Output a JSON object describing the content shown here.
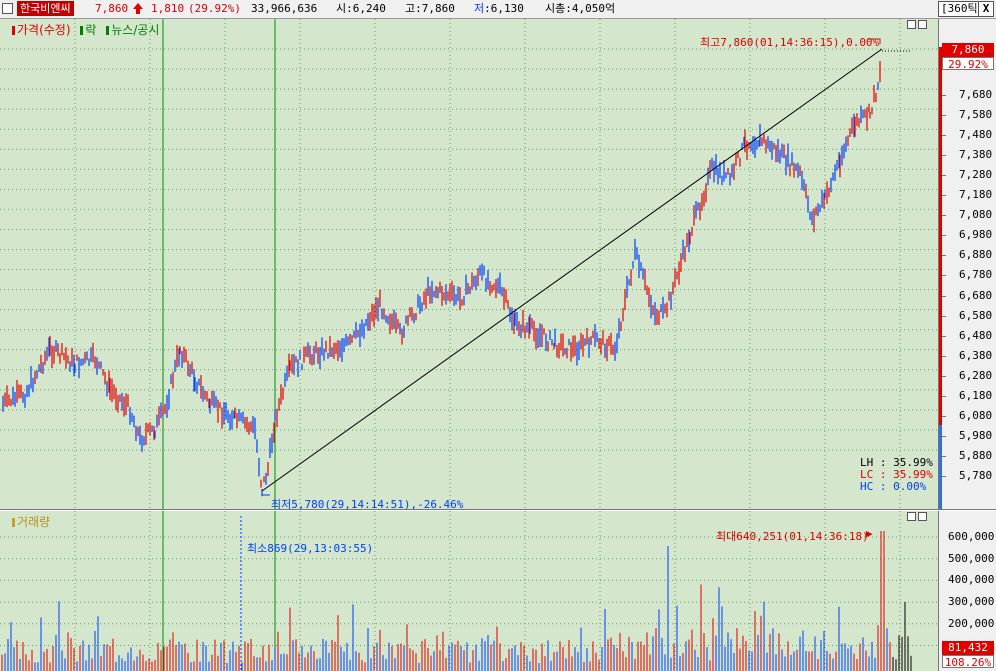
{
  "header": {
    "stock_name": "한국비엔씨",
    "price": "7,860",
    "change": "1,810",
    "change_pct": "(29.92%)",
    "volume": "33,966,636",
    "open": "시:6,240",
    "high": "고:7,860",
    "low_prefix": "저",
    "low": ":6,130",
    "market_cap": "시총:4,050억",
    "tick_selector": "[360틱]",
    "close_button": "X"
  },
  "price_pane": {
    "legend": [
      "가격(수정)",
      "락",
      "뉴스/공시"
    ],
    "annotations": {
      "high": "최고7,860(01,14:36:15),0.00%",
      "low": "최저5,780(29,14:14:51),-26.46%"
    },
    "stats": {
      "lh": "LH : 35.99%",
      "lc": "LC : 35.99%",
      "hc": "HC :  0.00%"
    }
  },
  "volume_pane": {
    "legend": "거래량",
    "annotations": {
      "min": "최소869(29,13:03:55)",
      "max": "최대640,251(01,14:36:18)"
    }
  },
  "price_axis": {
    "ticks": [
      "7,680",
      "7,580",
      "7,480",
      "7,380",
      "7,280",
      "7,180",
      "7,080",
      "6,980",
      "6,880",
      "6,780",
      "6,680",
      "6,580",
      "6,480",
      "6,380",
      "6,280",
      "6,180",
      "6,080",
      "5,980",
      "5,880",
      "5,780"
    ],
    "current": "7,860",
    "current_pct": "29.92%"
  },
  "volume_axis": {
    "ticks": [
      "600,000",
      "500,000",
      "400,000",
      "300,000",
      "200,000"
    ],
    "current": "81,432",
    "current_pct": "108.26%"
  },
  "colors": {
    "up": "#e00000",
    "down": "#0040ff",
    "pane_bg": "#d4e6cc",
    "accent_red": "#c00000",
    "news_line": "#008000"
  }
}
